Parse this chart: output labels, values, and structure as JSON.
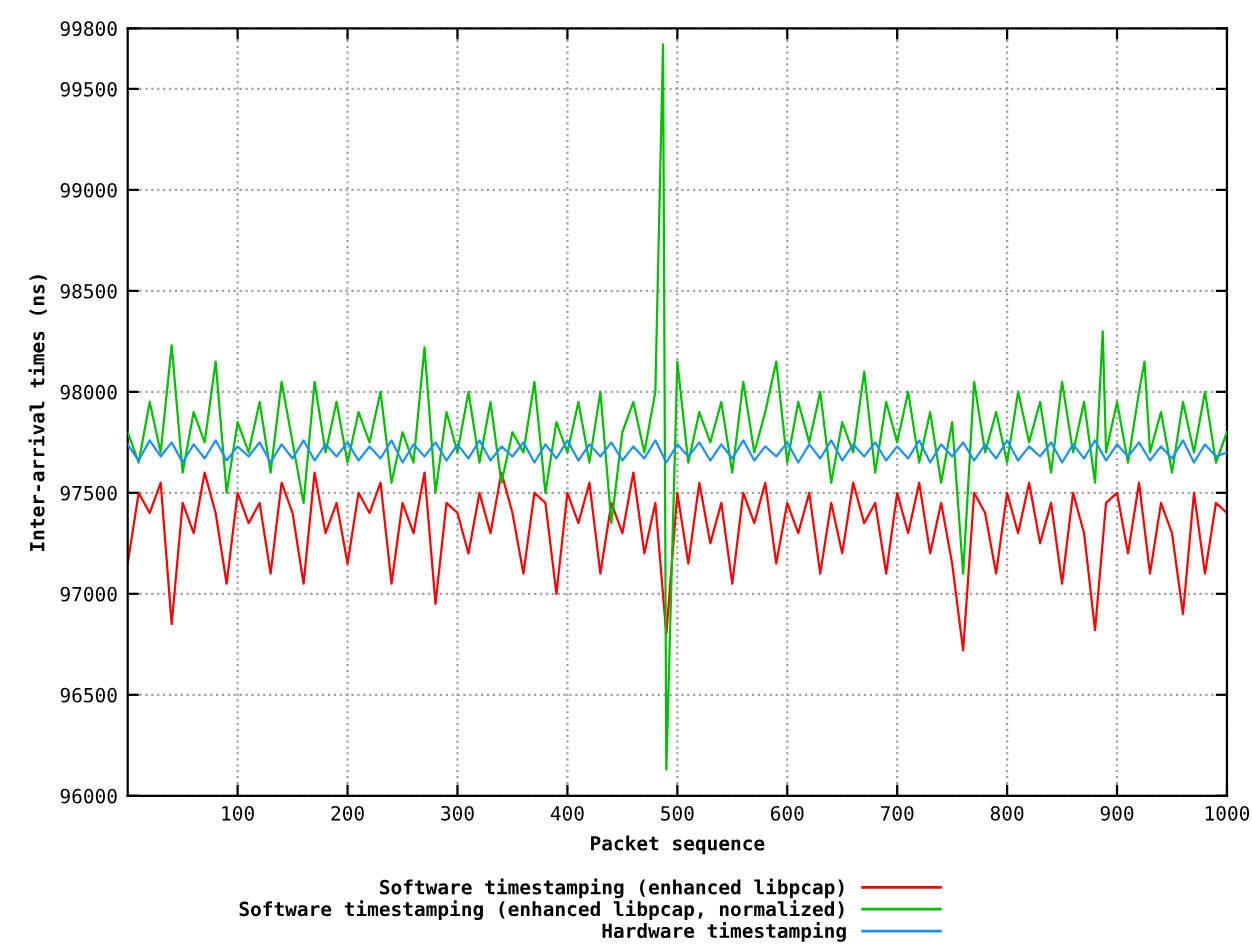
{
  "chart_data": {
    "type": "line",
    "xlabel": "Packet sequence",
    "ylabel": "Inter-arrival times (ns)",
    "xlim": [
      0,
      1000
    ],
    "xticks": [
      100,
      200,
      300,
      400,
      500,
      600,
      700,
      800,
      900,
      1000
    ],
    "ylim": [
      96000,
      99800
    ],
    "yticks": [
      96000,
      96500,
      97000,
      97500,
      98000,
      98500,
      99000,
      99500,
      99800
    ],
    "grid": true,
    "legend": "bottom",
    "line_style": "solid",
    "marker": "none",
    "series": [
      {
        "name": "Software timestamping (enhanced libpcap)",
        "color": "#ff0000",
        "x": [
          0,
          10,
          20,
          30,
          40,
          50,
          60,
          70,
          80,
          90,
          100,
          110,
          120,
          130,
          140,
          150,
          160,
          170,
          180,
          190,
          200,
          210,
          220,
          230,
          240,
          250,
          260,
          270,
          280,
          290,
          300,
          310,
          320,
          330,
          340,
          350,
          360,
          370,
          380,
          390,
          400,
          410,
          420,
          430,
          440,
          450,
          460,
          470,
          480,
          490,
          500,
          510,
          520,
          530,
          540,
          550,
          560,
          570,
          580,
          590,
          600,
          610,
          620,
          630,
          640,
          650,
          660,
          670,
          680,
          690,
          700,
          710,
          720,
          730,
          740,
          750,
          760,
          770,
          780,
          790,
          800,
          810,
          820,
          830,
          840,
          850,
          860,
          870,
          880,
          890,
          900,
          910,
          920,
          930,
          940,
          950,
          960,
          970,
          980,
          990,
          1000
        ],
        "values": [
          97150,
          97500,
          97400,
          97550,
          96850,
          97450,
          97300,
          97600,
          97400,
          97050,
          97500,
          97350,
          97450,
          97100,
          97550,
          97400,
          97050,
          97600,
          97300,
          97450,
          97150,
          97500,
          97400,
          97550,
          97050,
          97450,
          97300,
          97600,
          96950,
          97450,
          97400,
          97200,
          97500,
          97300,
          97600,
          97400,
          97100,
          97500,
          97450,
          97000,
          97500,
          97350,
          97550,
          97100,
          97450,
          97300,
          97600,
          97200,
          97450,
          96800,
          97500,
          97150,
          97550,
          97250,
          97450,
          97050,
          97500,
          97350,
          97550,
          97150,
          97450,
          97300,
          97500,
          97100,
          97450,
          97200,
          97550,
          97350,
          97450,
          97100,
          97500,
          97300,
          97550,
          97200,
          97450,
          97150,
          96720,
          97500,
          97400,
          97100,
          97500,
          97300,
          97550,
          97250,
          97450,
          97050,
          97500,
          97300,
          96820,
          97450,
          97500,
          97200,
          97550,
          97100,
          97450,
          97300,
          96900,
          97500,
          97100,
          97450,
          97400
        ]
      },
      {
        "name": "Software timestamping (enhanced libpcap, normalized)",
        "color": "#00c000",
        "x": [
          0,
          10,
          20,
          30,
          40,
          50,
          60,
          70,
          80,
          90,
          100,
          110,
          120,
          130,
          140,
          150,
          160,
          170,
          180,
          190,
          200,
          210,
          220,
          230,
          240,
          250,
          260,
          270,
          280,
          290,
          300,
          310,
          320,
          330,
          340,
          350,
          360,
          370,
          380,
          390,
          400,
          410,
          420,
          430,
          440,
          450,
          460,
          470,
          480,
          487,
          490,
          500,
          510,
          520,
          530,
          540,
          550,
          560,
          570,
          580,
          590,
          600,
          610,
          620,
          630,
          640,
          650,
          660,
          670,
          680,
          690,
          700,
          710,
          720,
          730,
          740,
          750,
          760,
          770,
          780,
          790,
          800,
          810,
          820,
          830,
          840,
          850,
          860,
          870,
          880,
          887,
          890,
          900,
          910,
          920,
          925,
          930,
          940,
          950,
          960,
          970,
          980,
          990,
          1000
        ],
        "values": [
          97800,
          97650,
          97950,
          97700,
          98230,
          97600,
          97900,
          97750,
          98150,
          97500,
          97850,
          97700,
          97950,
          97600,
          98050,
          97750,
          97450,
          98050,
          97700,
          97950,
          97650,
          97900,
          97750,
          98000,
          97550,
          97800,
          97650,
          98220,
          97500,
          97900,
          97700,
          98000,
          97650,
          97950,
          97550,
          97800,
          97700,
          98050,
          97500,
          97850,
          97700,
          97950,
          97650,
          98000,
          97350,
          97800,
          97950,
          97700,
          98000,
          99720,
          96130,
          98150,
          97650,
          97900,
          97750,
          97950,
          97600,
          98050,
          97700,
          97900,
          98150,
          97650,
          97950,
          97750,
          98000,
          97550,
          97850,
          97700,
          98100,
          97600,
          97950,
          97750,
          98000,
          97650,
          97900,
          97550,
          97850,
          97100,
          98050,
          97700,
          97900,
          97650,
          98000,
          97750,
          97950,
          97600,
          98050,
          97700,
          97950,
          97550,
          98300,
          97700,
          97950,
          97650,
          98000,
          98150,
          97700,
          97900,
          97600,
          97950,
          97700,
          98000,
          97650,
          97800
        ]
      },
      {
        "name": "Hardware timestamping",
        "color": "#1e90ff",
        "x": [
          0,
          10,
          20,
          30,
          40,
          50,
          60,
          70,
          80,
          90,
          100,
          110,
          120,
          130,
          140,
          150,
          160,
          170,
          180,
          190,
          200,
          210,
          220,
          230,
          240,
          250,
          260,
          270,
          280,
          290,
          300,
          310,
          320,
          330,
          340,
          350,
          360,
          370,
          380,
          390,
          400,
          410,
          420,
          430,
          440,
          450,
          460,
          470,
          480,
          490,
          500,
          510,
          520,
          530,
          540,
          550,
          560,
          570,
          580,
          590,
          600,
          610,
          620,
          630,
          640,
          650,
          660,
          670,
          680,
          690,
          700,
          710,
          720,
          730,
          740,
          750,
          760,
          770,
          780,
          790,
          800,
          810,
          820,
          830,
          840,
          850,
          860,
          870,
          880,
          890,
          900,
          910,
          920,
          930,
          940,
          950,
          960,
          970,
          980,
          990,
          1000
        ],
        "values": [
          97740,
          97660,
          97760,
          97680,
          97750,
          97650,
          97740,
          97670,
          97760,
          97660,
          97730,
          97680,
          97750,
          97650,
          97740,
          97670,
          97760,
          97660,
          97740,
          97680,
          97750,
          97660,
          97730,
          97670,
          97760,
          97650,
          97740,
          97680,
          97750,
          97660,
          97740,
          97670,
          97760,
          97660,
          97730,
          97680,
          97750,
          97650,
          97740,
          97670,
          97760,
          97660,
          97740,
          97680,
          97750,
          97660,
          97730,
          97670,
          97760,
          97650,
          97740,
          97680,
          97750,
          97660,
          97740,
          97670,
          97760,
          97660,
          97730,
          97680,
          97750,
          97650,
          97740,
          97670,
          97760,
          97660,
          97740,
          97680,
          97750,
          97660,
          97730,
          97670,
          97760,
          97650,
          97740,
          97680,
          97750,
          97660,
          97740,
          97670,
          97760,
          97660,
          97730,
          97680,
          97750,
          97650,
          97740,
          97670,
          97760,
          97660,
          97740,
          97680,
          97750,
          97660,
          97730,
          97670,
          97760,
          97650,
          97740,
          97680,
          97700
        ]
      }
    ]
  }
}
